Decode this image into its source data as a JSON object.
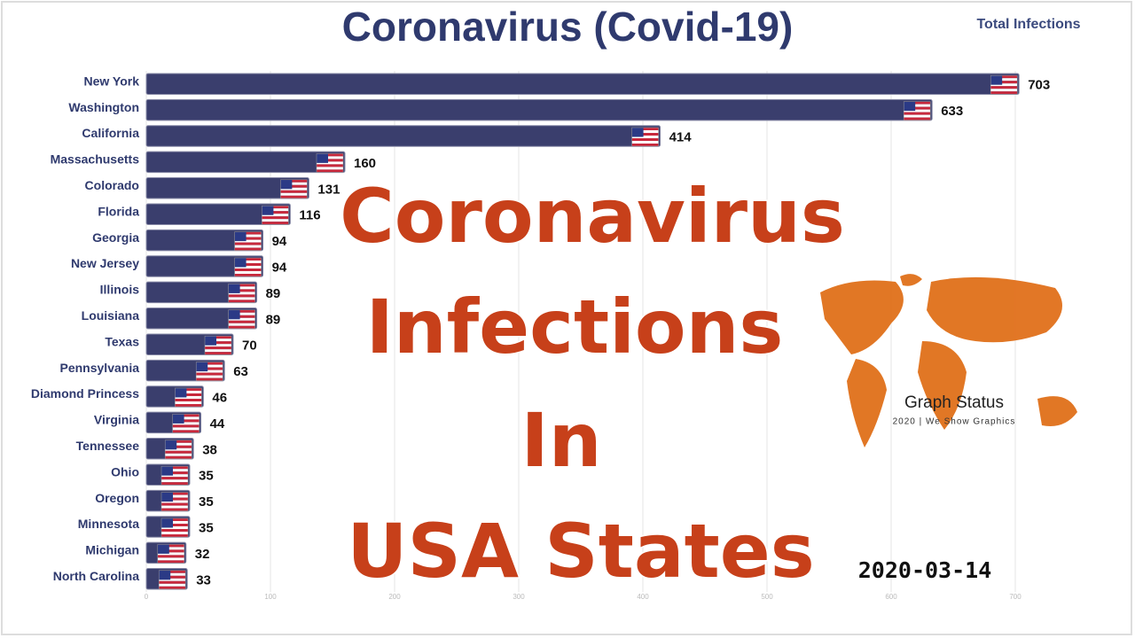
{
  "chart_data": {
    "type": "bar",
    "orientation": "horizontal",
    "title": "Coronavirus (Covid-19)",
    "subtitle": "Total Infections",
    "categories": [
      "New York",
      "Washington",
      "California",
      "Massachusetts",
      "Colorado",
      "Florida",
      "Georgia",
      "New Jersey",
      "Illinois",
      "Louisiana",
      "Texas",
      "Pennsylvania",
      "Diamond Princess",
      "Virginia",
      "Tennessee",
      "Ohio",
      "Oregon",
      "Minnesota",
      "Michigan",
      "North Carolina"
    ],
    "values": [
      703,
      633,
      414,
      160,
      131,
      116,
      94,
      94,
      89,
      89,
      70,
      63,
      46,
      44,
      38,
      35,
      35,
      35,
      32,
      33
    ],
    "color": "#3a3e6d",
    "xlim": [
      0,
      725
    ],
    "xticks": [
      0,
      100,
      200,
      300,
      400,
      500,
      600,
      700
    ],
    "grid": true,
    "annotations": [
      "Coronavirus",
      "Infections",
      "In",
      "USA States"
    ],
    "date": "2020-03-14",
    "brand": "Graph Status",
    "brand_tagline": "2020 | We Show Graphics"
  }
}
